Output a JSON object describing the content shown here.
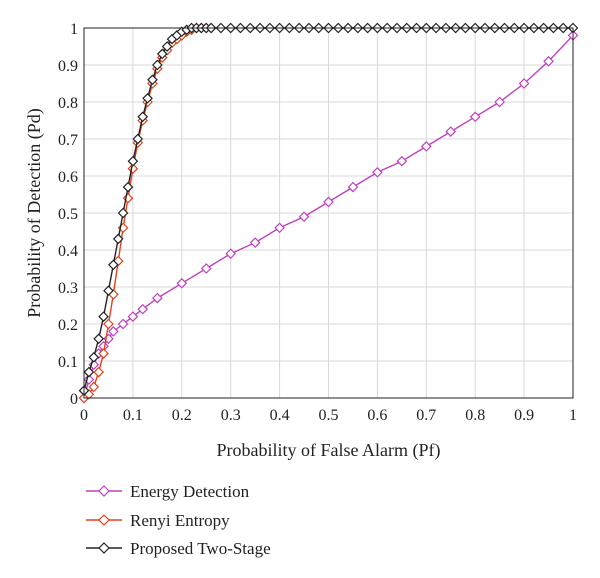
{
  "chart_data": {
    "type": "line",
    "xlabel": "Probability of False Alarm (Pf)",
    "ylabel": "Probability of Detection (Pd)",
    "xlim": [
      0,
      1
    ],
    "ylim": [
      0,
      1
    ],
    "grid": true,
    "legend_position": "bottom-left, below plot",
    "x_ticks": [
      "0",
      "0.1",
      "0.2",
      "0.3",
      "0.4",
      "0.5",
      "0.6",
      "0.7",
      "0.8",
      "0.9",
      "1"
    ],
    "y_ticks": [
      "0",
      "0.1",
      "0.2",
      "0.3",
      "0.4",
      "0.5",
      "0.6",
      "0.7",
      "0.8",
      "0.9",
      "1"
    ],
    "series": [
      {
        "name": "Energy Detection",
        "color": "#bf40bf",
        "marker": "diamond",
        "x": [
          0,
          0.01,
          0.02,
          0.03,
          0.04,
          0.05,
          0.06,
          0.08,
          0.1,
          0.12,
          0.15,
          0.2,
          0.25,
          0.3,
          0.35,
          0.4,
          0.45,
          0.5,
          0.55,
          0.6,
          0.65,
          0.7,
          0.75,
          0.8,
          0.85,
          0.9,
          0.95,
          1.0
        ],
        "y": [
          0,
          0.05,
          0.09,
          0.12,
          0.14,
          0.16,
          0.18,
          0.2,
          0.22,
          0.24,
          0.27,
          0.31,
          0.35,
          0.39,
          0.42,
          0.46,
          0.49,
          0.53,
          0.57,
          0.61,
          0.64,
          0.68,
          0.72,
          0.76,
          0.8,
          0.85,
          0.91,
          0.98
        ]
      },
      {
        "name": "Renyi Entropy",
        "color": "#e0421b",
        "marker": "diamond",
        "x": [
          0,
          0.01,
          0.02,
          0.03,
          0.04,
          0.05,
          0.06,
          0.07,
          0.08,
          0.09,
          0.1,
          0.11,
          0.12,
          0.13,
          0.14,
          0.15,
          0.16,
          0.17,
          0.18,
          0.19,
          0.2,
          0.21,
          0.22,
          0.23,
          0.24,
          0.25,
          0.26
        ],
        "y": [
          0,
          0.01,
          0.03,
          0.07,
          0.12,
          0.2,
          0.28,
          0.37,
          0.46,
          0.54,
          0.62,
          0.69,
          0.75,
          0.8,
          0.85,
          0.89,
          0.92,
          0.94,
          0.96,
          0.97,
          0.98,
          0.99,
          0.995,
          1.0,
          1.0,
          1.0,
          1.0
        ]
      },
      {
        "name": "Proposed Two-Stage",
        "color": "#222222",
        "marker": "diamond",
        "x": [
          0,
          0.01,
          0.02,
          0.03,
          0.04,
          0.05,
          0.06,
          0.07,
          0.08,
          0.09,
          0.1,
          0.11,
          0.12,
          0.13,
          0.14,
          0.15,
          0.16,
          0.17,
          0.18,
          0.19,
          0.2,
          0.21,
          0.22,
          0.23,
          0.24,
          0.25,
          0.26,
          0.28,
          0.3,
          0.32,
          0.34,
          0.36,
          0.38,
          0.4,
          0.42,
          0.44,
          0.46,
          0.48,
          0.5,
          0.52,
          0.54,
          0.56,
          0.58,
          0.6,
          0.62,
          0.64,
          0.66,
          0.68,
          0.7,
          0.72,
          0.74,
          0.76,
          0.78,
          0.8,
          0.82,
          0.84,
          0.86,
          0.88,
          0.9,
          0.92,
          0.94,
          0.96,
          0.98,
          1.0
        ],
        "y": [
          0.02,
          0.07,
          0.11,
          0.16,
          0.22,
          0.29,
          0.36,
          0.43,
          0.5,
          0.57,
          0.64,
          0.7,
          0.76,
          0.81,
          0.86,
          0.9,
          0.93,
          0.95,
          0.97,
          0.98,
          0.99,
          0.995,
          1.0,
          1.0,
          1.0,
          1.0,
          1.0,
          1.0,
          1.0,
          1.0,
          1.0,
          1.0,
          1.0,
          1.0,
          1.0,
          1.0,
          1.0,
          1.0,
          1.0,
          1.0,
          1.0,
          1.0,
          1.0,
          1.0,
          1.0,
          1.0,
          1.0,
          1.0,
          1.0,
          1.0,
          1.0,
          1.0,
          1.0,
          1.0,
          1.0,
          1.0,
          1.0,
          1.0,
          1.0,
          1.0,
          1.0,
          1.0,
          1.0,
          1.0
        ]
      }
    ]
  }
}
